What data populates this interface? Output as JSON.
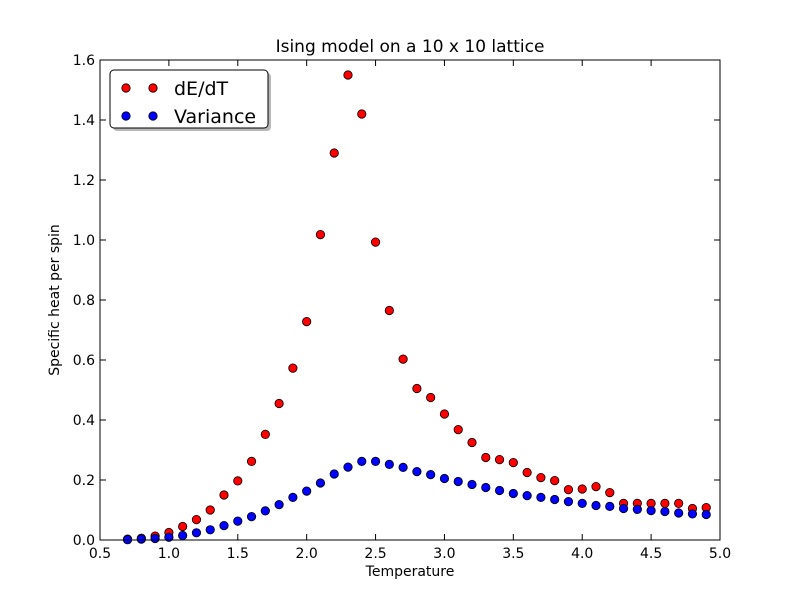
{
  "chart_data": {
    "type": "scatter",
    "title": "Ising model on a 10 x 10 lattice",
    "xlabel": "Temperature",
    "ylabel": "Specific heat per spin",
    "xlim": [
      0.5,
      5.0
    ],
    "ylim": [
      0.0,
      1.6
    ],
    "xticks": [
      "0.5",
      "1.0",
      "1.5",
      "2.0",
      "2.5",
      "3.0",
      "3.5",
      "4.0",
      "4.5",
      "5.0"
    ],
    "yticks": [
      "0.0",
      "0.2",
      "0.4",
      "0.6",
      "0.8",
      "1.0",
      "1.2",
      "1.4",
      "1.6"
    ],
    "grid": false,
    "legend_position": "top-left",
    "series": [
      {
        "name": "dE/dT",
        "color": "#ff0000",
        "x": [
          0.7,
          0.8,
          0.9,
          1.0,
          1.1,
          1.2,
          1.3,
          1.4,
          1.5,
          1.6,
          1.7,
          1.8,
          1.9,
          2.0,
          2.1,
          2.2,
          2.3,
          2.4,
          2.5,
          2.6,
          2.7,
          2.8,
          2.9,
          3.0,
          3.1,
          3.2,
          3.3,
          3.4,
          3.5,
          3.6,
          3.7,
          3.8,
          3.9,
          4.0,
          4.1,
          4.2,
          4.3,
          4.4,
          4.5,
          4.6,
          4.7,
          4.8,
          4.9
        ],
        "y": [
          0.003,
          0.006,
          0.013,
          0.025,
          0.045,
          0.068,
          0.1,
          0.15,
          0.197,
          0.262,
          0.352,
          0.455,
          0.573,
          0.728,
          1.018,
          1.29,
          1.55,
          1.42,
          0.993,
          0.765,
          0.603,
          0.505,
          0.475,
          0.42,
          0.368,
          0.325,
          0.275,
          0.268,
          0.258,
          0.225,
          0.208,
          0.198,
          0.168,
          0.17,
          0.178,
          0.158,
          0.122,
          0.122,
          0.122,
          0.122,
          0.122,
          0.105,
          0.108
        ]
      },
      {
        "name": "Variance",
        "color": "#0000ff",
        "x": [
          0.7,
          0.8,
          0.9,
          1.0,
          1.1,
          1.2,
          1.3,
          1.4,
          1.5,
          1.6,
          1.7,
          1.8,
          1.9,
          2.0,
          2.1,
          2.2,
          2.3,
          2.4,
          2.5,
          2.6,
          2.7,
          2.8,
          2.9,
          3.0,
          3.1,
          3.2,
          3.3,
          3.4,
          3.5,
          3.6,
          3.7,
          3.8,
          3.9,
          4.0,
          4.1,
          4.2,
          4.3,
          4.4,
          4.5,
          4.6,
          4.7,
          4.8,
          4.9
        ],
        "y": [
          0.001,
          0.003,
          0.005,
          0.009,
          0.015,
          0.024,
          0.034,
          0.048,
          0.063,
          0.078,
          0.097,
          0.118,
          0.142,
          0.163,
          0.19,
          0.22,
          0.243,
          0.262,
          0.262,
          0.252,
          0.242,
          0.228,
          0.218,
          0.205,
          0.195,
          0.185,
          0.175,
          0.165,
          0.155,
          0.148,
          0.142,
          0.135,
          0.128,
          0.122,
          0.115,
          0.112,
          0.105,
          0.102,
          0.098,
          0.095,
          0.09,
          0.087,
          0.085
        ]
      }
    ]
  }
}
